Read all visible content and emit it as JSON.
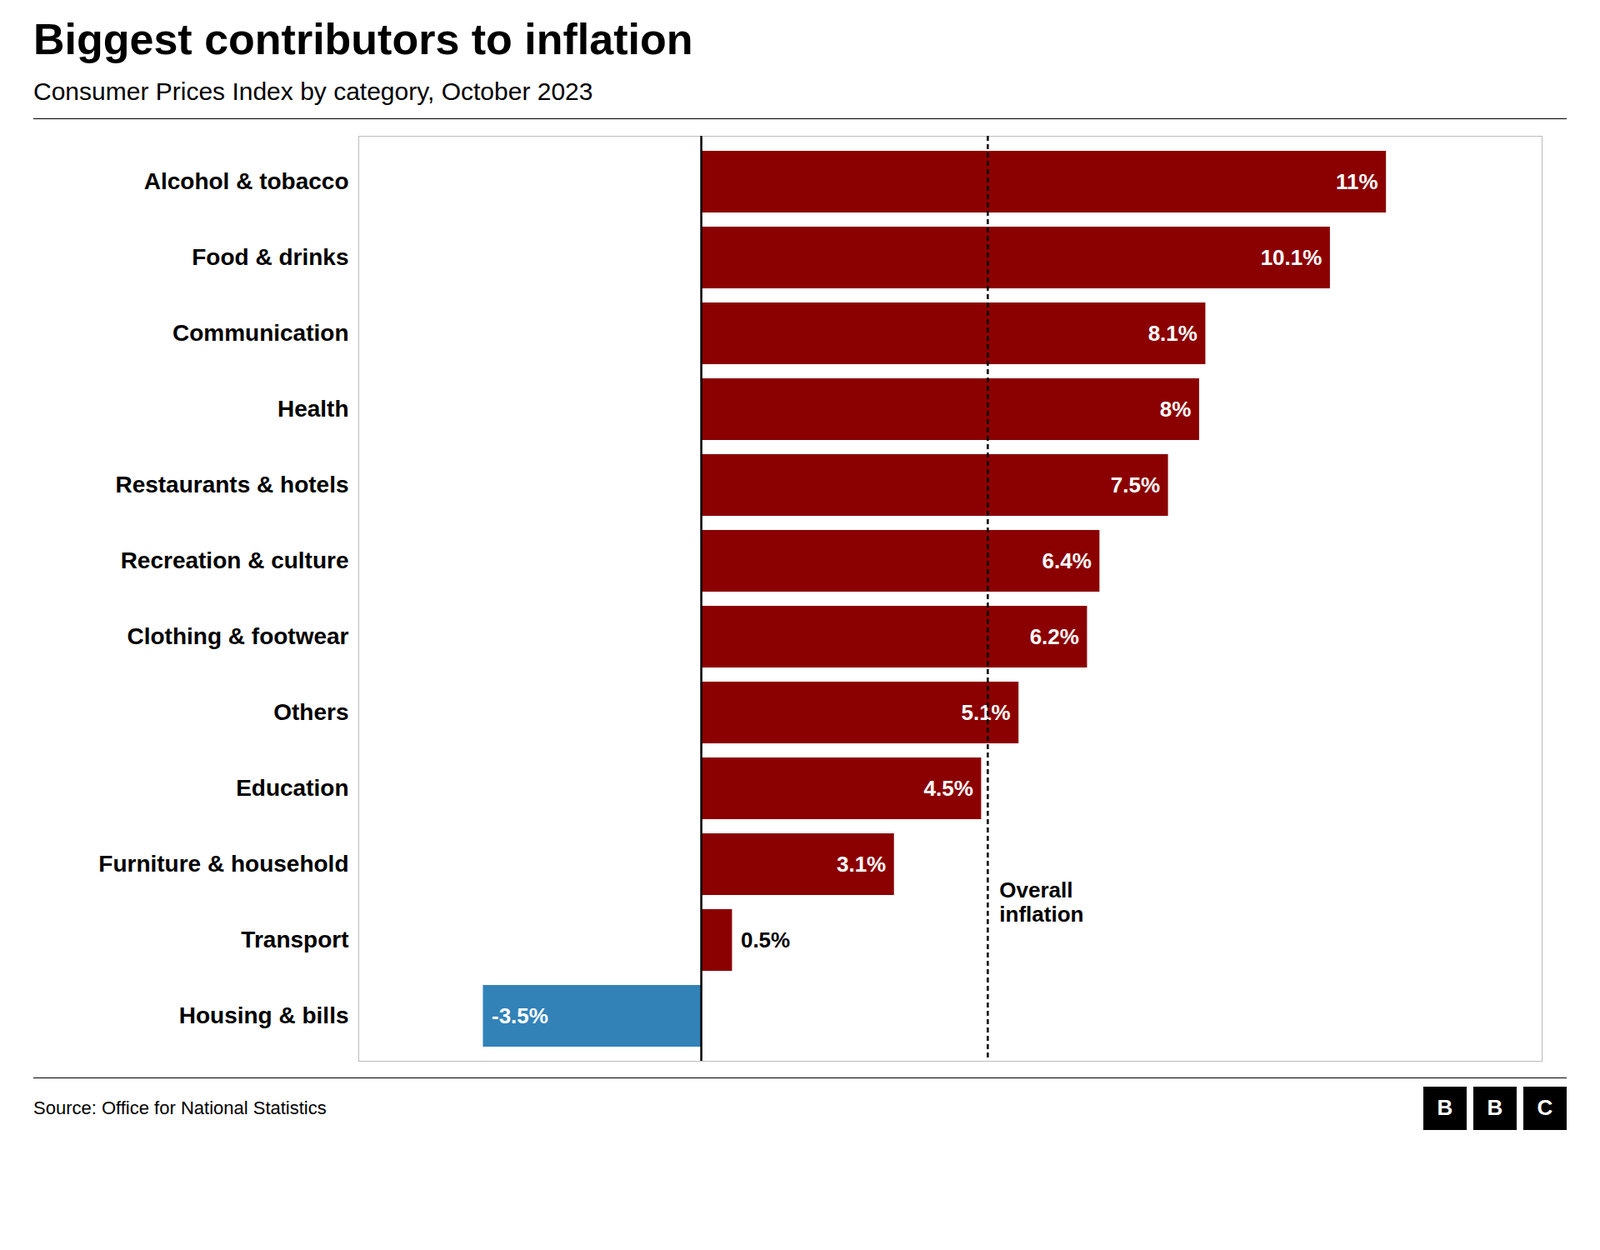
{
  "chart_data": {
    "type": "bar",
    "orientation": "horizontal",
    "title": "Biggest contributors to inflation",
    "subtitle": "Consumer Prices Index by category, October 2023",
    "source": "Source: Office for National Statistics",
    "logo": "BBC",
    "categories": [
      "Alcohol & tobacco",
      "Food & drinks",
      "Communication",
      "Health",
      "Restaurants & hotels",
      "Recreation & culture",
      "Clothing & footwear",
      "Others",
      "Education",
      "Furniture & household",
      "Transport",
      "Housing & bills"
    ],
    "values": [
      11.0,
      10.1,
      8.1,
      8.0,
      7.5,
      6.4,
      6.2,
      5.1,
      4.5,
      3.1,
      0.5,
      -3.5
    ],
    "value_labels": [
      "11%",
      "10.1%",
      "8.1%",
      "8%",
      "7.5%",
      "6.4%",
      "6.2%",
      "5.1%",
      "4.5%",
      "3.1%",
      "0.5%",
      "-3.5%"
    ],
    "colors": [
      "#8B0000",
      "#8B0000",
      "#8B0000",
      "#8B0000",
      "#8B0000",
      "#8B0000",
      "#8B0000",
      "#8B0000",
      "#8B0000",
      "#8B0000",
      "#8B0000",
      "#3282B8"
    ],
    "data_labels": true,
    "xlim": [
      -5.5,
      13.5
    ],
    "xticks": [],
    "tick_labels": "y",
    "grid": false,
    "annotations": [
      {
        "x": 4.6,
        "text": "Overall\ninflation"
      }
    ]
  }
}
